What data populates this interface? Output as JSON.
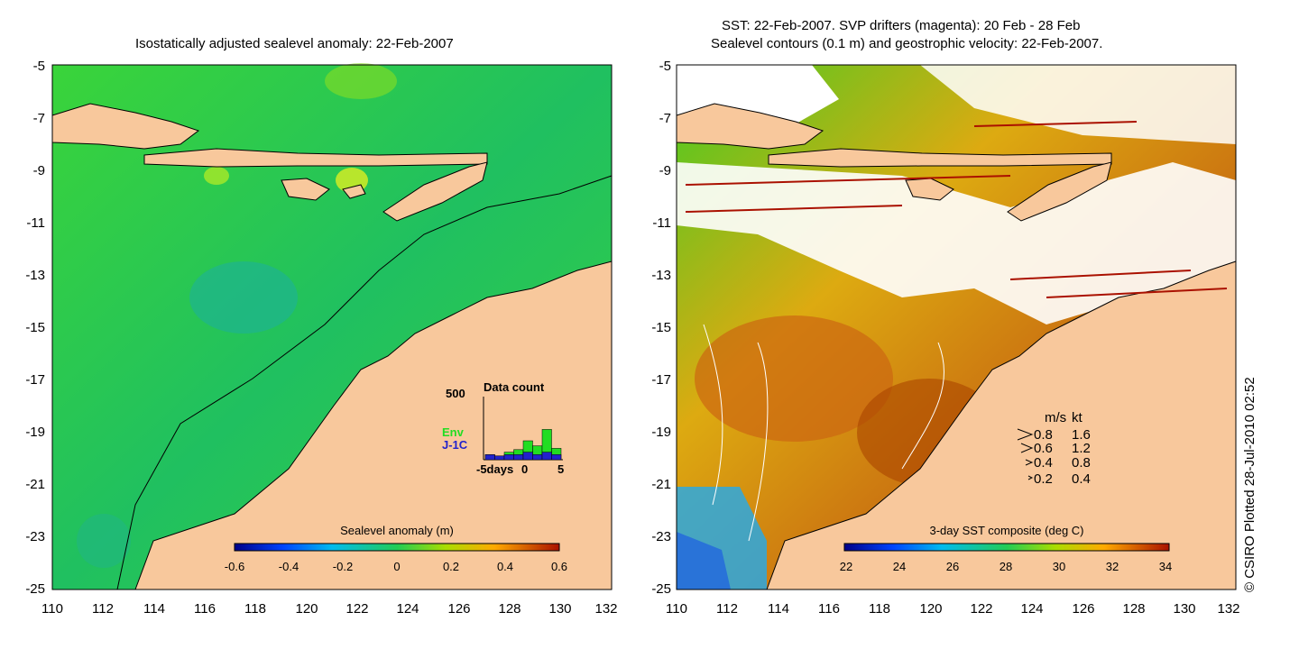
{
  "left_panel": {
    "title": "Isostatically adjusted sealevel anomaly: 22-Feb-2007",
    "y_ticks": [
      "-5",
      "-7",
      "-9",
      "-11",
      "-13",
      "-15",
      "-17",
      "-19",
      "-21",
      "-23",
      "-25"
    ],
    "x_ticks": [
      "110",
      "112",
      "114",
      "116",
      "118",
      "120",
      "122",
      "124",
      "126",
      "128",
      "130",
      "132"
    ],
    "colorbar": {
      "label": "Sealevel anomaly (m)",
      "ticks": [
        "-0.6",
        "-0.4",
        "-0.2",
        "0",
        "0.2",
        "0.4",
        "0.6"
      ]
    },
    "inset": {
      "title": "Data count",
      "ymax_label": "500",
      "series_env": "Env",
      "series_j1c": "J-1C",
      "x_label_left": "-5days",
      "x_label_mid": "0",
      "x_label_right": "5",
      "env_color": "#22dd22",
      "j1c_color": "#2222cc",
      "bars_env": [
        40,
        30,
        60,
        80,
        150,
        110,
        240,
        90
      ],
      "bars_j1c": [
        40,
        30,
        40,
        40,
        60,
        40,
        60,
        40
      ]
    }
  },
  "right_panel": {
    "title_line1": "SST: 22-Feb-2007. SVP drifters (magenta): 20 Feb - 28 Feb",
    "title_line2": "Sealevel contours (0.1 m) and geostrophic velocity: 22-Feb-2007.",
    "y_ticks": [
      "-5",
      "-7",
      "-9",
      "-11",
      "-13",
      "-15",
      "-17",
      "-19",
      "-21",
      "-23",
      "-25"
    ],
    "x_ticks": [
      "110",
      "112",
      "114",
      "116",
      "118",
      "120",
      "122",
      "124",
      "126",
      "128",
      "130",
      "132"
    ],
    "colorbar": {
      "label": "3-day SST composite (deg C)",
      "ticks": [
        "22",
        "24",
        "26",
        "28",
        "30",
        "32",
        "34"
      ]
    },
    "speed_legend": {
      "header_ms": "m/s",
      "header_kt": "kt",
      "rows": [
        {
          "ms": "0.8",
          "kt": "1.6"
        },
        {
          "ms": "0.6",
          "kt": "1.2"
        },
        {
          "ms": "0.4",
          "kt": "0.8"
        },
        {
          "ms": "0.2",
          "kt": "0.4"
        }
      ]
    }
  },
  "credit": "© CSIRO Plotted 28-Jul-2010 02:52",
  "colors": {
    "land": "#f8c89c",
    "sea_green": "#22cc33",
    "warm_orange": "#dd8811",
    "hot_red": "#aa3300"
  }
}
